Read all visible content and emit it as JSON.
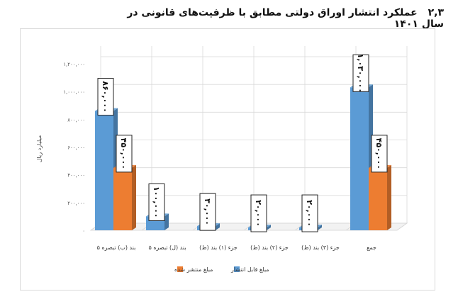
{
  "heading": {
    "number": "۲,۳",
    "title": "عملکرد انتشار اوراق دولتی مطابق با ظرفیت‌های قانونی در سال ۱۴۰۱"
  },
  "chart_data": {
    "type": "bar",
    "ylabel": "میلیارد ریال",
    "ylim": [
      0,
      1200000
    ],
    "yticks": [
      0,
      200000,
      400000,
      600000,
      800000,
      1000000,
      1200000
    ],
    "ytick_labels": [
      "۰",
      "۲۰۰,۰۰۰",
      "۴۰۰,۰۰۰",
      "۶۰۰,۰۰۰",
      "۸۰۰,۰۰۰",
      "۱,۰۰۰,۰۰۰",
      "۱,۲۰۰,۰۰۰"
    ],
    "categories": [
      "بند (ب) تبصره ۵",
      "بند (ل) تبصره ۵",
      "جزء (۱) بند (ط)",
      "جزء (۲) بند (ط)",
      "جزء (۳) بند (ط)",
      "جمع"
    ],
    "series": [
      {
        "name": "مبلغ قابل انتشار",
        "color": "#5b9bd5",
        "values": [
          860000,
          100000,
          30000,
          20000,
          20000,
          1030000
        ],
        "labels": [
          "۸۶۰,۰۰۰",
          "۱۰۰,۰۰۰",
          "۳۰,۰۰۰",
          "۲۰,۰۰۰",
          "۲۰,۰۰۰",
          "۱,۰۳۰,۰۰۰"
        ]
      },
      {
        "name": "مبلغ منتشر شده",
        "color": "#ed7d31",
        "values": [
          450000,
          null,
          null,
          null,
          null,
          450000
        ],
        "labels": [
          "۴۵۰,۰۰۰",
          null,
          null,
          null,
          null,
          "۴۵۰,۰۰۰"
        ]
      }
    ],
    "legend_position": "bottom",
    "grid": true
  }
}
